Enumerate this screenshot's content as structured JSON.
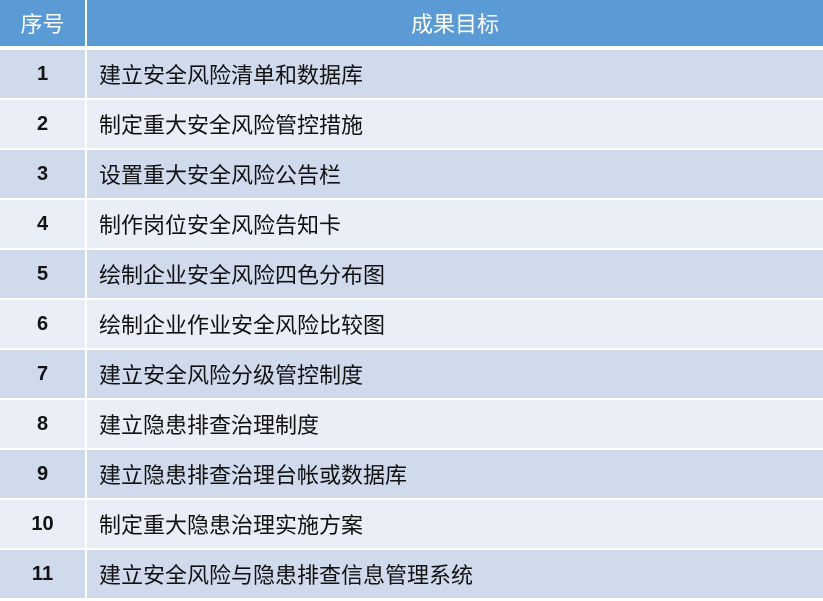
{
  "table": {
    "headers": [
      "序号",
      "成果目标"
    ],
    "rows": [
      {
        "no": "1",
        "goal": "建立安全风险清单和数据库"
      },
      {
        "no": "2",
        "goal": "制定重大安全风险管控措施"
      },
      {
        "no": "3",
        "goal": "设置重大安全风险公告栏"
      },
      {
        "no": "4",
        "goal": "制作岗位安全风险告知卡"
      },
      {
        "no": "5",
        "goal": "绘制企业安全风险四色分布图"
      },
      {
        "no": "6",
        "goal": "绘制企业作业安全风险比较图"
      },
      {
        "no": "7",
        "goal": "建立安全风险分级管控制度"
      },
      {
        "no": "8",
        "goal": "建立隐患排查治理制度"
      },
      {
        "no": "9",
        "goal": "建立隐患排查治理台帐或数据库"
      },
      {
        "no": "10",
        "goal": "制定重大隐患治理实施方案"
      },
      {
        "no": "11",
        "goal": "建立安全风险与隐患排查信息管理系统"
      }
    ]
  },
  "colors": {
    "header": "#5b9bd5",
    "row_odd": "#cfdaed",
    "row_even": "#e9eef7"
  }
}
